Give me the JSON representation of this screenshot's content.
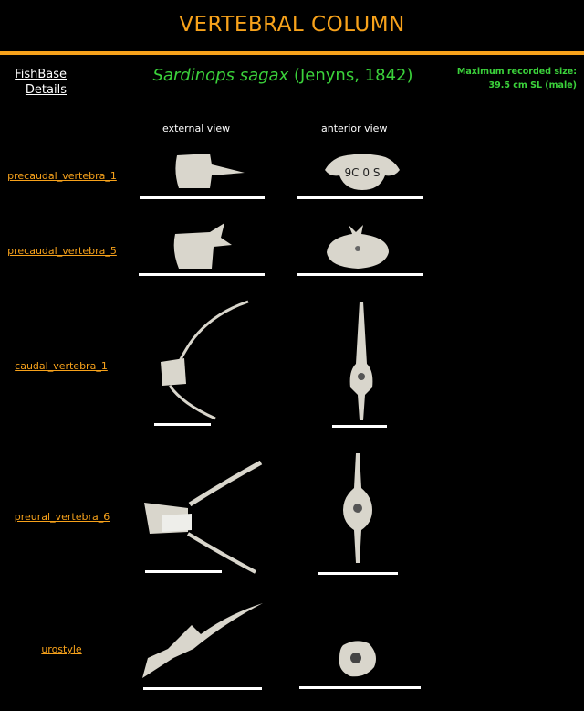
{
  "header": {
    "title": "VERTEBRAL COLUMN"
  },
  "fishbase": {
    "line1": "FishBase",
    "line2": "Details"
  },
  "species": {
    "name": "Sardinops sagax",
    "authority": "(Jenyns, 1842)"
  },
  "max_size": {
    "label": "Maximum recorded size:",
    "value": "39.5 cm SL (male)"
  },
  "columns": {
    "external": "external view",
    "anterior": "anterior view"
  },
  "rows": [
    {
      "label": "precaudal_vertebra_1"
    },
    {
      "label": "precaudal_vertebra_5"
    },
    {
      "label": "caudal_vertebra_1"
    },
    {
      "label": "preural_vertebra_6"
    },
    {
      "label": "urostyle"
    }
  ],
  "colors": {
    "accent": "#f7a21b",
    "species": "#3bd23b",
    "bone": "#d9d6cc"
  }
}
